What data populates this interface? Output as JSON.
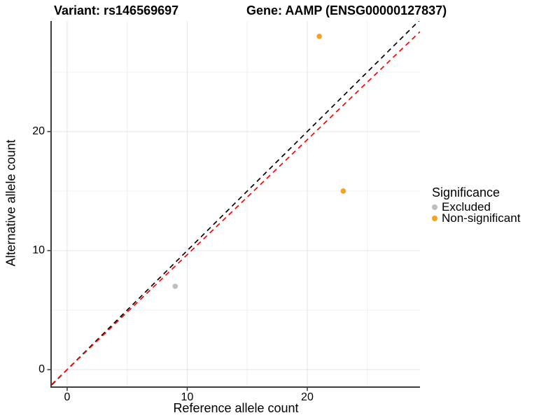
{
  "titles": {
    "variant": "Variant: rs146569697",
    "gene": "Gene: AAMP (ENSG00000127837)"
  },
  "chart_data": {
    "type": "scatter",
    "xlabel": "Reference allele count",
    "ylabel": "Alternative allele count",
    "xlim": [
      -1.28,
      29.39
    ],
    "ylim": [
      -1.47,
      29.29
    ],
    "xticks": [
      0,
      10,
      20
    ],
    "yticks": [
      0,
      10,
      20
    ],
    "xminor": [
      5,
      15,
      25
    ],
    "yminor": [
      5,
      15,
      25
    ],
    "grid": "major+minor",
    "colors": {
      "major_grid": "#e4e4e4",
      "minor_grid": "#f0f0f0",
      "axis_line": "#3f3f3f"
    },
    "series": [
      {
        "name": "Excluded",
        "color": "#bebebe",
        "points": [
          [
            9,
            7
          ]
        ]
      },
      {
        "name": "Non-significant",
        "color": "#f9a11b",
        "points": [
          [
            21,
            28
          ],
          [
            23,
            15
          ]
        ]
      }
    ],
    "ablines": [
      {
        "name": "identity-line",
        "slope": 1,
        "intercept": 0,
        "color": "#000000",
        "linetype": "dashed"
      },
      {
        "name": "allelic-ratio-line",
        "slope": 0.966,
        "intercept": 0,
        "color": "#ff0000",
        "linetype": "dashed"
      }
    ],
    "legend": {
      "title": "Significance",
      "position": "right",
      "items": [
        {
          "label": "Excluded",
          "color": "#bebebe"
        },
        {
          "label": "Non-significant",
          "color": "#f9a11b"
        }
      ]
    }
  }
}
